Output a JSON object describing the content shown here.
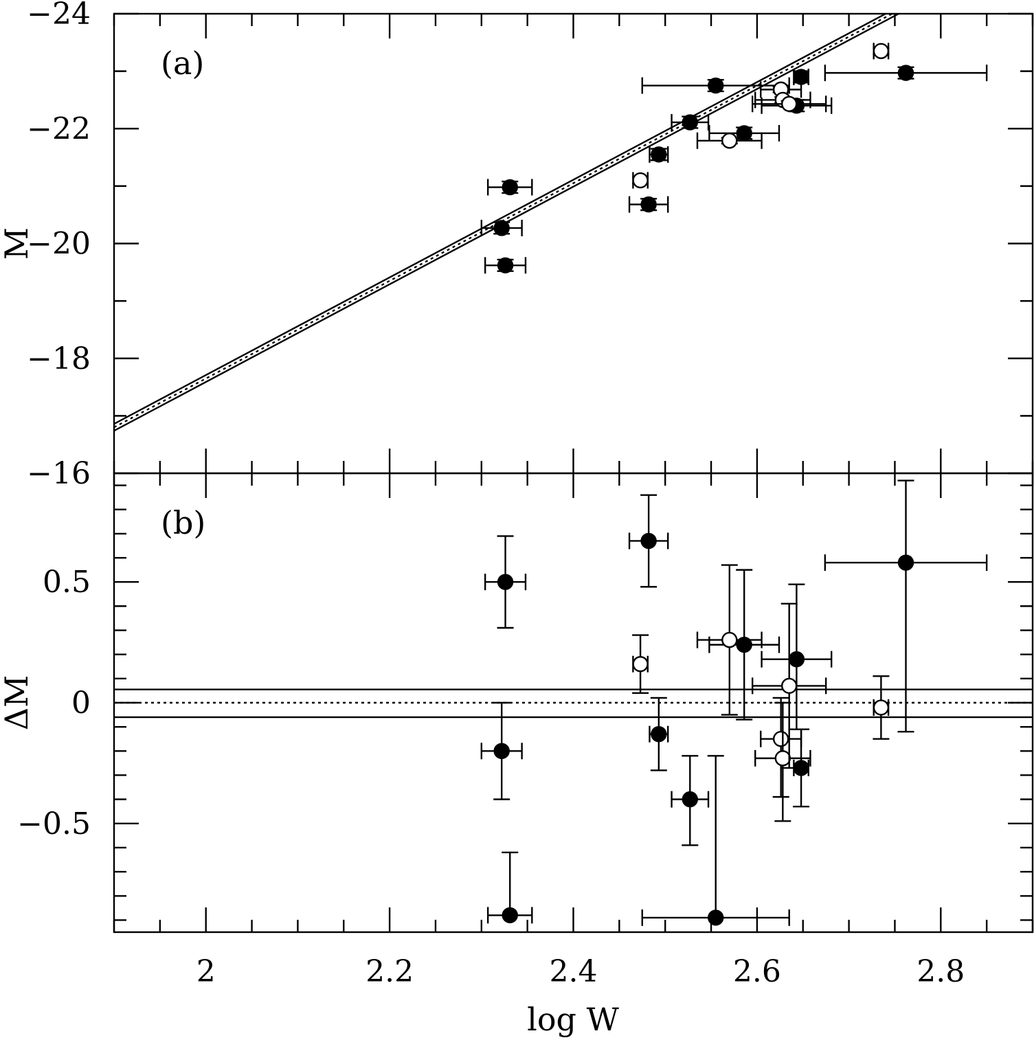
{
  "chart_data": [
    {
      "panel": "a",
      "type": "scatter",
      "label": "(a)",
      "ylabel": "M",
      "xlabel": "log W",
      "xlim": [
        1.9,
        2.9
      ],
      "ylim": [
        -16,
        -24
      ],
      "x_ticks": [
        2,
        2.2,
        2.4,
        2.6,
        2.8
      ],
      "x_tick_labels": [
        "2",
        "2.2",
        "2.4",
        "2.6",
        "2.8"
      ],
      "y_ticks": [
        -24,
        -22,
        -20,
        -18,
        -16
      ],
      "y_tick_labels": [
        "−24",
        "−22",
        "−20",
        "−18",
        "−16"
      ],
      "fit_line": {
        "slope": -8.5,
        "intercept": -0.65,
        "band_offset": 0.06,
        "style": "dotted center with solid bounds"
      },
      "series": [
        {
          "name": "filled",
          "marker": "filled-circle",
          "points": [
            {
              "x": 2.322,
              "y": -20.27,
              "xerr": 0.022,
              "yerr": 0.1
            },
            {
              "x": 2.326,
              "y": -19.62,
              "xerr": 0.022,
              "yerr": 0.1
            },
            {
              "x": 2.331,
              "y": -20.98,
              "xerr": 0.024,
              "yerr": 0.1
            },
            {
              "x": 2.482,
              "y": -20.68,
              "xerr": 0.021,
              "yerr": 0.1
            },
            {
              "x": 2.493,
              "y": -21.55,
              "xerr": 0.01,
              "yerr": 0.1
            },
            {
              "x": 2.527,
              "y": -22.11,
              "xerr": 0.02,
              "yerr": 0.1
            },
            {
              "x": 2.555,
              "y": -22.75,
              "xerr": 0.08,
              "yerr": 0.1
            },
            {
              "x": 2.586,
              "y": -21.92,
              "xerr": 0.038,
              "yerr": 0.1
            },
            {
              "x": 2.643,
              "y": -22.4,
              "xerr": 0.038,
              "yerr": 0.1
            },
            {
              "x": 2.648,
              "y": -22.9,
              "xerr": 0.008,
              "yerr": 0.1
            },
            {
              "x": 2.762,
              "y": -22.97,
              "xerr": 0.088,
              "yerr": 0.1
            }
          ]
        },
        {
          "name": "open",
          "marker": "open-circle",
          "points": [
            {
              "x": 2.473,
              "y": -21.1,
              "xerr": 0.008,
              "yerr": 0.05
            },
            {
              "x": 2.57,
              "y": -21.79,
              "xerr": 0.035,
              "yerr": 0.05
            },
            {
              "x": 2.626,
              "y": -22.68,
              "xerr": 0.022,
              "yerr": 0.05
            },
            {
              "x": 2.628,
              "y": -22.5,
              "xerr": 0.03,
              "yerr": 0.05
            },
            {
              "x": 2.635,
              "y": -22.43,
              "xerr": 0.04,
              "yerr": 0.05
            },
            {
              "x": 2.735,
              "y": -23.35,
              "xerr": 0.008,
              "yerr": 0.05
            }
          ]
        }
      ]
    },
    {
      "panel": "b",
      "type": "scatter",
      "label": "(b)",
      "ylabel": "ΔM",
      "xlabel": "log W",
      "xlim": [
        1.9,
        2.9
      ],
      "ylim": [
        -0.95,
        0.95
      ],
      "x_ticks": [
        2,
        2.2,
        2.4,
        2.6,
        2.8
      ],
      "x_tick_labels": [
        "2",
        "2.2",
        "2.4",
        "2.6",
        "2.8"
      ],
      "y_ticks": [
        0.5,
        0,
        -0.5
      ],
      "y_tick_labels": [
        "0.5",
        "0",
        "−0.5"
      ],
      "reference_lines": {
        "center": 0,
        "upper": 0.055,
        "lower": -0.06
      },
      "series": [
        {
          "name": "filled",
          "marker": "filled-circle",
          "points": [
            {
              "x": 2.322,
              "y": -0.2,
              "xerr": 0.022,
              "ylo": -0.4,
              "yhi": 0.0
            },
            {
              "x": 2.326,
              "y": 0.5,
              "xerr": 0.022,
              "ylo": 0.31,
              "yhi": 0.69
            },
            {
              "x": 2.331,
              "y": -0.88,
              "xerr": 0.024,
              "ylo": -0.88,
              "yhi": -0.62
            },
            {
              "x": 2.482,
              "y": 0.67,
              "xerr": 0.021,
              "ylo": 0.48,
              "yhi": 0.86
            },
            {
              "x": 2.493,
              "y": -0.13,
              "xerr": 0.01,
              "ylo": -0.28,
              "yhi": 0.02
            },
            {
              "x": 2.527,
              "y": -0.4,
              "xerr": 0.02,
              "ylo": -0.59,
              "yhi": -0.22
            },
            {
              "x": 2.555,
              "y": -0.89,
              "xerr": 0.08,
              "ylo": -0.89,
              "yhi": -0.22
            },
            {
              "x": 2.586,
              "y": 0.24,
              "xerr": 0.038,
              "ylo": -0.07,
              "yhi": 0.55
            },
            {
              "x": 2.643,
              "y": 0.18,
              "xerr": 0.038,
              "ylo": -0.11,
              "yhi": 0.49
            },
            {
              "x": 2.648,
              "y": -0.27,
              "xerr": 0.008,
              "ylo": -0.43,
              "yhi": -0.11
            },
            {
              "x": 2.762,
              "y": 0.58,
              "xerr": 0.088,
              "ylo": -0.12,
              "yhi": 0.92
            }
          ]
        },
        {
          "name": "open",
          "marker": "open-circle",
          "points": [
            {
              "x": 2.473,
              "y": 0.16,
              "xerr": 0.008,
              "ylo": 0.04,
              "yhi": 0.28
            },
            {
              "x": 2.57,
              "y": 0.26,
              "xerr": 0.035,
              "ylo": -0.05,
              "yhi": 0.57
            },
            {
              "x": 2.626,
              "y": -0.15,
              "xerr": 0.022,
              "ylo": -0.39,
              "yhi": 0.02
            },
            {
              "x": 2.628,
              "y": -0.23,
              "xerr": 0.03,
              "ylo": -0.49,
              "yhi": 0.0
            },
            {
              "x": 2.635,
              "y": 0.07,
              "xerr": 0.04,
              "ylo": -0.27,
              "yhi": 0.41
            },
            {
              "x": 2.735,
              "y": -0.02,
              "xerr": 0.008,
              "ylo": -0.15,
              "yhi": 0.11
            }
          ]
        }
      ]
    }
  ]
}
